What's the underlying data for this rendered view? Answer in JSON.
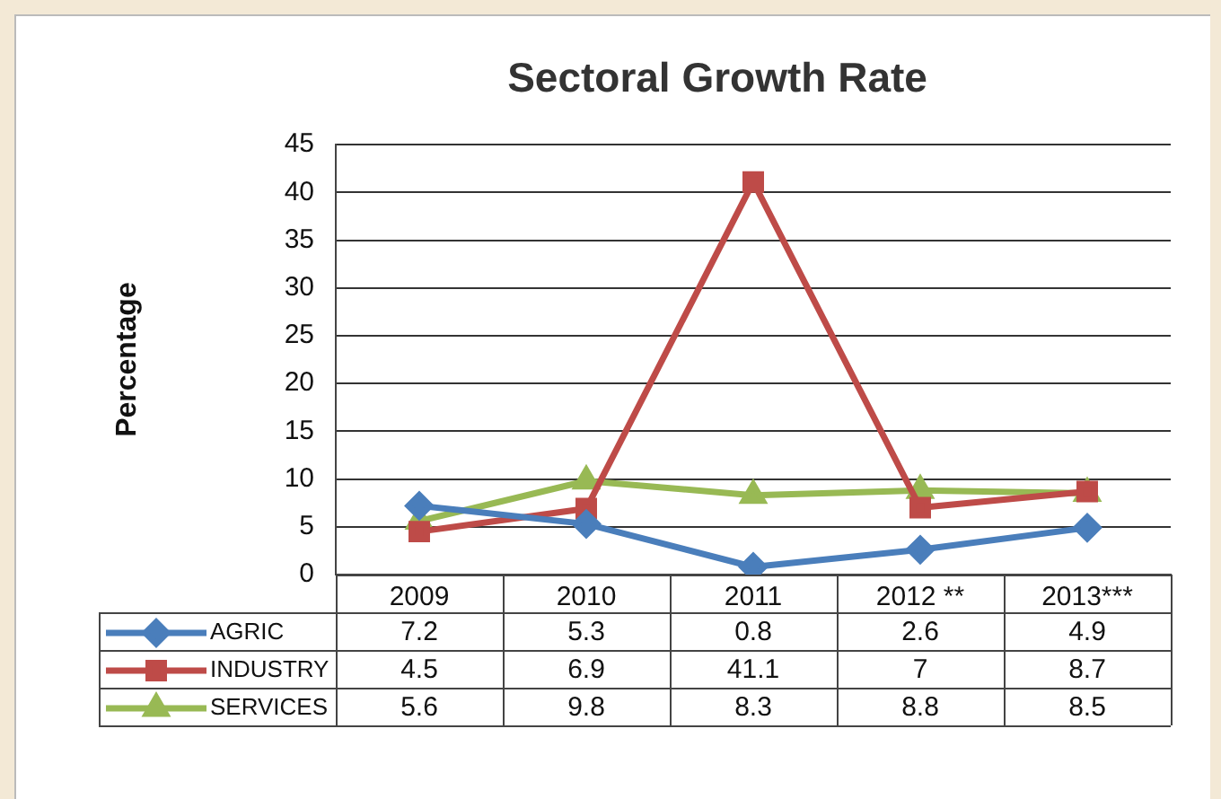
{
  "chart_data": {
    "type": "line",
    "title": "Sectoral Growth Rate",
    "ylabel": "Percentage",
    "categories": [
      "2009",
      "2010",
      "2011",
      "2012 **",
      "2013***"
    ],
    "series": [
      {
        "name": "AGRIC",
        "color": "#4a7ebb",
        "marker": "diamond",
        "values": [
          7.2,
          5.3,
          0.8,
          2.6,
          4.9
        ]
      },
      {
        "name": "INDUSTRY",
        "color": "#be4b48",
        "marker": "square",
        "values": [
          4.5,
          6.9,
          41.1,
          7,
          8.7
        ]
      },
      {
        "name": "SERVICES",
        "color": "#98b954",
        "marker": "triangle",
        "values": [
          5.6,
          9.8,
          8.3,
          8.8,
          8.5
        ]
      }
    ],
    "ylim": [
      0,
      45
    ],
    "yticks": [
      0,
      5,
      10,
      15,
      20,
      25,
      30,
      35,
      40,
      45
    ],
    "grid": "y",
    "legend": "bottom left",
    "data_labels": true
  }
}
